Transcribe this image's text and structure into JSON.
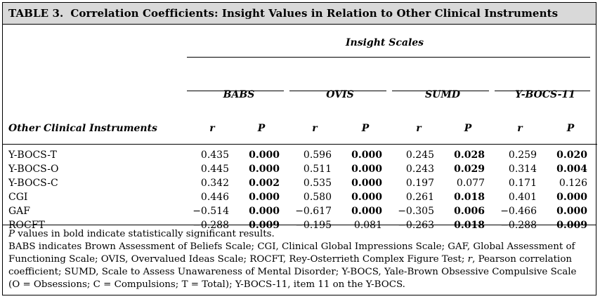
{
  "title": {
    "number": "TABLE 3.",
    "text": "Correlation Coefficients: Insight Values in Relation to Other Clinical Instruments"
  },
  "header": {
    "spanner": "Insight Scales",
    "row_label": "Other Clinical Instruments",
    "groups": [
      "BABS",
      "OVIS",
      "SUMD",
      "Y-BOCS-11"
    ],
    "stat_r": "r",
    "stat_p": "P"
  },
  "rows": [
    {
      "label": "Y-BOCS-T",
      "cells": [
        [
          "0.435",
          false
        ],
        [
          "0.000",
          true
        ],
        [
          "0.596",
          false
        ],
        [
          "0.000",
          true
        ],
        [
          "0.245",
          false
        ],
        [
          "0.028",
          true
        ],
        [
          "0.259",
          false
        ],
        [
          "0.020",
          true
        ]
      ]
    },
    {
      "label": "Y-BOCS-O",
      "cells": [
        [
          "0.445",
          false
        ],
        [
          "0.000",
          true
        ],
        [
          "0.511",
          false
        ],
        [
          "0.000",
          true
        ],
        [
          "0.243",
          false
        ],
        [
          "0.029",
          true
        ],
        [
          "0.314",
          false
        ],
        [
          "0.004",
          true
        ]
      ]
    },
    {
      "label": "Y-BOCS-C",
      "cells": [
        [
          "0.342",
          false
        ],
        [
          "0.002",
          true
        ],
        [
          "0.535",
          false
        ],
        [
          "0.000",
          true
        ],
        [
          "0.197",
          false
        ],
        [
          "0.077",
          false
        ],
        [
          "0.171",
          false
        ],
        [
          "0.126",
          false
        ]
      ]
    },
    {
      "label": "CGI",
      "cells": [
        [
          "0.446",
          false
        ],
        [
          "0.000",
          true
        ],
        [
          "0.580",
          false
        ],
        [
          "0.000",
          true
        ],
        [
          "0.261",
          false
        ],
        [
          "0.018",
          true
        ],
        [
          "0.401",
          false
        ],
        [
          "0.000",
          true
        ]
      ]
    },
    {
      "label": "GAF",
      "cells": [
        [
          "−0.514",
          false
        ],
        [
          "0.000",
          true
        ],
        [
          "−0.617",
          false
        ],
        [
          "0.000",
          true
        ],
        [
          "−0.305",
          false
        ],
        [
          "0.006",
          true
        ],
        [
          "−0.466",
          false
        ],
        [
          "0.000",
          true
        ]
      ]
    },
    {
      "label": "ROCFT",
      "cells": [
        [
          "−0.288",
          false
        ],
        [
          "0.009",
          true
        ],
        [
          "−0.195",
          false
        ],
        [
          "0.081",
          false
        ],
        [
          "−0.263",
          false
        ],
        [
          "0.018",
          true
        ],
        [
          "−0.288",
          false
        ],
        [
          "0.009",
          true
        ]
      ]
    }
  ],
  "footnotes": {
    "line1_italic": "P",
    "line1_rest": " values in bold indicate statistically significant results.",
    "abbrev_part1": "BABS indicates Brown Assessment of Beliefs Scale; CGI, Clinical Global Impressions Scale; GAF, Global Assessment of Functioning Scale; OVIS, Overvalued Ideas Scale; ROCFT, Rey-Osterrieth Complex Figure Test; ",
    "abbrev_r": "r",
    "abbrev_part2": ", Pearson correlation coefficient; SUMD, Scale to Assess Unawareness of Mental Disorder; Y-BOCS, Yale-Brown Obsessive Compulsive Scale (O = Obsessions; C = Compulsions; T = Total); Y-BOCS-11, item 11 on the Y-BOCS."
  }
}
